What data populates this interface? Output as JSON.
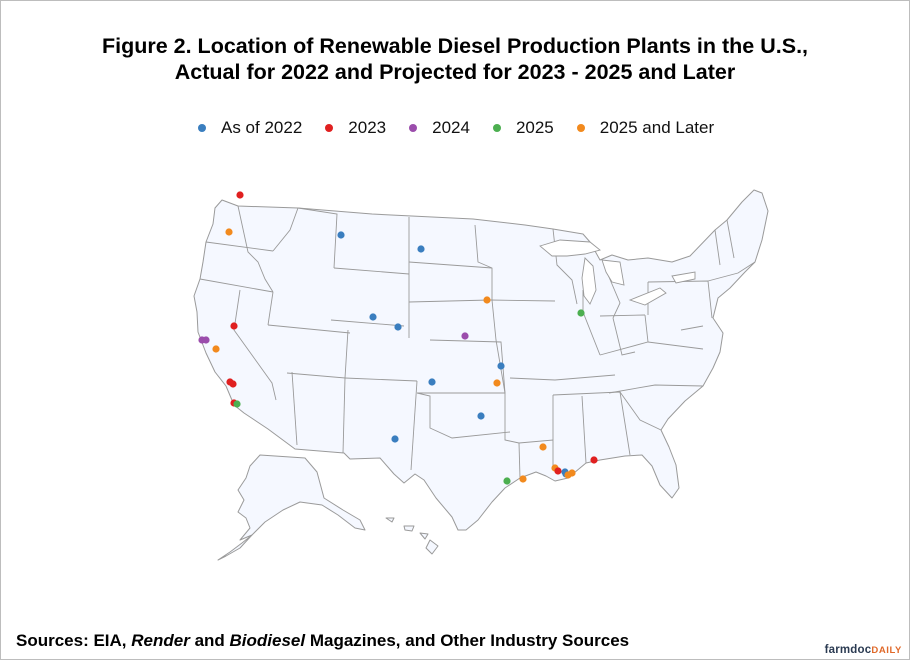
{
  "title": {
    "line1": "Figure 2. Location of Renewable Diesel Production Plants in the U.S.,",
    "line2": "Actual for 2022 and Projected for 2023 - 2025 and Later"
  },
  "legend": [
    {
      "label": "As of 2022",
      "color": "#3a7ebf"
    },
    {
      "label": "2023",
      "color": "#e02020"
    },
    {
      "label": "2024",
      "color": "#9b4dac"
    },
    {
      "label": "2025",
      "color": "#4caf50"
    },
    {
      "label": "2025 and Later",
      "color": "#f28a1e"
    }
  ],
  "map": {
    "land_color": "#f5f8ff",
    "border_color": "#9a9a9a"
  },
  "plants": [
    {
      "category": "2023",
      "location": "Northwest Washington"
    },
    {
      "category": "2025 and Later",
      "location": "Western Washington"
    },
    {
      "category": "As of 2022",
      "location": "Montana"
    },
    {
      "category": "As of 2022",
      "location": "North Dakota"
    },
    {
      "category": "2025 and Later",
      "location": "Northeast Nebraska"
    },
    {
      "category": "2023",
      "location": "Northern Nevada"
    },
    {
      "category": "2024",
      "location": "San Francisco Bay Area"
    },
    {
      "category": "2024",
      "location": "San Francisco Bay Area"
    },
    {
      "category": "2025 and Later",
      "location": "Central California"
    },
    {
      "category": "2023",
      "location": "Central California"
    },
    {
      "category": "2023",
      "location": "Central California"
    },
    {
      "category": "2023",
      "location": "Los Angeles Area"
    },
    {
      "category": "2025",
      "location": "Los Angeles Area"
    },
    {
      "category": "As of 2022",
      "location": "Wyoming"
    },
    {
      "category": "As of 2022",
      "location": "Wyoming"
    },
    {
      "category": "2024",
      "location": "Nebraska"
    },
    {
      "category": "2025",
      "location": "Illinois"
    },
    {
      "category": "As of 2022",
      "location": "Missouri"
    },
    {
      "category": "As of 2022",
      "location": "Kansas"
    },
    {
      "category": "2025 and Later",
      "location": "Kansas/Missouri"
    },
    {
      "category": "As of 2022",
      "location": "Oklahoma"
    },
    {
      "category": "As of 2022",
      "location": "New Mexico"
    },
    {
      "category": "2025 and Later",
      "location": "Northern Louisiana"
    },
    {
      "category": "2025",
      "location": "Texas Gulf Coast"
    },
    {
      "category": "2025 and Later",
      "location": "Texas Gulf Coast"
    },
    {
      "category": "2025 and Later",
      "location": "Southern Louisiana"
    },
    {
      "category": "2023",
      "location": "Southern Louisiana"
    },
    {
      "category": "As of 2022",
      "location": "Southern Louisiana"
    },
    {
      "category": "2025 and Later",
      "location": "Southern Louisiana"
    },
    {
      "category": "As of 2022",
      "location": "Southeast Louisiana"
    },
    {
      "category": "2025 and Later",
      "location": "Southeast Louisiana"
    },
    {
      "category": "2023",
      "location": "Mississippi Gulf Coast"
    }
  ],
  "source": {
    "prefix": "Sources: EIA, ",
    "italic1": "Render",
    "middle": " and ",
    "italic2": "Biodiesel",
    "suffix": " Magazines, and Other Industry Sources"
  },
  "brand": {
    "name": "farmdoc",
    "suffix": "DAILY"
  }
}
